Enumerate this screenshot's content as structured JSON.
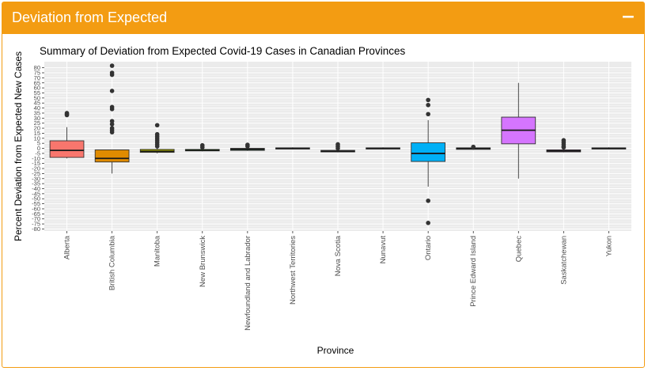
{
  "header": {
    "title": "Deviation from Expected",
    "collapse_icon": "minus-icon",
    "collapse_symbol": "−",
    "color": "#f39c12"
  },
  "chart_data": {
    "type": "box",
    "title": "Summary of Deviation from Expected Covid-19 Cases in Canadian Provinces",
    "xlabel": "Province",
    "ylabel": "Percent Deviation from Expected New Cases",
    "ylim": [
      -82,
      86
    ],
    "yticks": [
      -80,
      -75,
      -70,
      -65,
      -60,
      -55,
      -50,
      -45,
      -40,
      -35,
      -30,
      -25,
      -20,
      -15,
      -10,
      -5,
      0,
      5,
      10,
      15,
      20,
      25,
      30,
      35,
      40,
      45,
      50,
      55,
      60,
      65,
      70,
      75,
      80
    ],
    "grid": true,
    "legend": "none",
    "categories": [
      "Alberta",
      "British Columbia",
      "Manitoba",
      "New Brunswick",
      "Newfoundland and Labrador",
      "Northwest Territories",
      "Nova Scotia",
      "Nunavut",
      "Ontario",
      "Prince Edward Island",
      "Quebec",
      "Saskatchewan",
      "Yukon"
    ],
    "boxes": [
      {
        "province": "Alberta",
        "color": "#f8766d",
        "q1": -9,
        "median": -2,
        "q3": 7.5,
        "whisker_low": -10,
        "whisker_high": 21,
        "outliers": [
          33,
          34,
          35
        ]
      },
      {
        "province": "British Columbia",
        "color": "#e08b00",
        "q1": -13.5,
        "median": -10,
        "q3": -1.5,
        "whisker_low": -25,
        "whisker_high": -1.5,
        "outliers": [
          16,
          18,
          20,
          24,
          27,
          39,
          41,
          57,
          73,
          75,
          82
        ]
      },
      {
        "province": "Manitoba",
        "color": "#a3a500",
        "q1": -4,
        "median": -3,
        "q3": -1,
        "whisker_low": -5,
        "whisker_high": 0,
        "outliers": [
          2,
          4,
          6,
          8,
          10,
          12,
          14,
          23
        ]
      },
      {
        "province": "New Brunswick",
        "color": "#39b600",
        "q1": -2.5,
        "median": -2,
        "q3": -1,
        "whisker_low": -3,
        "whisker_high": 0,
        "outliers": [
          1,
          3
        ]
      },
      {
        "province": "Newfoundland and Labrador",
        "color": "#00bb4e",
        "q1": -2,
        "median": -1,
        "q3": 0,
        "whisker_low": -2.5,
        "whisker_high": 1,
        "outliers": [
          2,
          3.5
        ]
      },
      {
        "province": "Northwest Territories",
        "color": "#00bf7d",
        "q1": -0.5,
        "median": 0,
        "q3": 0.5,
        "whisker_low": -1,
        "whisker_high": 1,
        "outliers": []
      },
      {
        "province": "Nova Scotia",
        "color": "#00c1a3",
        "q1": -3.5,
        "median": -3,
        "q3": -2,
        "whisker_low": -4,
        "whisker_high": -1,
        "outliers": [
          0,
          2,
          4
        ]
      },
      {
        "province": "Nunavut",
        "color": "#00bfc4",
        "q1": -0.5,
        "median": 0,
        "q3": 0.5,
        "whisker_low": -1,
        "whisker_high": 1,
        "outliers": []
      },
      {
        "province": "Ontario",
        "color": "#00b0f6",
        "q1": -13,
        "median": -5,
        "q3": 5.5,
        "whisker_low": -38,
        "whisker_high": 28,
        "outliers": [
          34,
          43,
          48,
          -52,
          -74
        ]
      },
      {
        "province": "Prince Edward Island",
        "color": "#35a2ff",
        "q1": -1,
        "median": 0,
        "q3": 0.5,
        "whisker_low": -1.5,
        "whisker_high": 1,
        "outliers": [
          1.5
        ]
      },
      {
        "province": "Quebec",
        "color": "#d575fe",
        "q1": 4.5,
        "median": 18,
        "q3": 31,
        "whisker_low": -30,
        "whisker_high": 65,
        "outliers": []
      },
      {
        "province": "Saskatchewan",
        "color": "#f962dd",
        "q1": -3.5,
        "median": -2.5,
        "q3": -1.5,
        "whisker_low": -4,
        "whisker_high": 0,
        "outliers": [
          1,
          2,
          4,
          6,
          8
        ]
      },
      {
        "province": "Yukon",
        "color": "#ff65ac",
        "q1": -0.5,
        "median": 0,
        "q3": 0.5,
        "whisker_low": -1,
        "whisker_high": 1,
        "outliers": []
      }
    ]
  }
}
